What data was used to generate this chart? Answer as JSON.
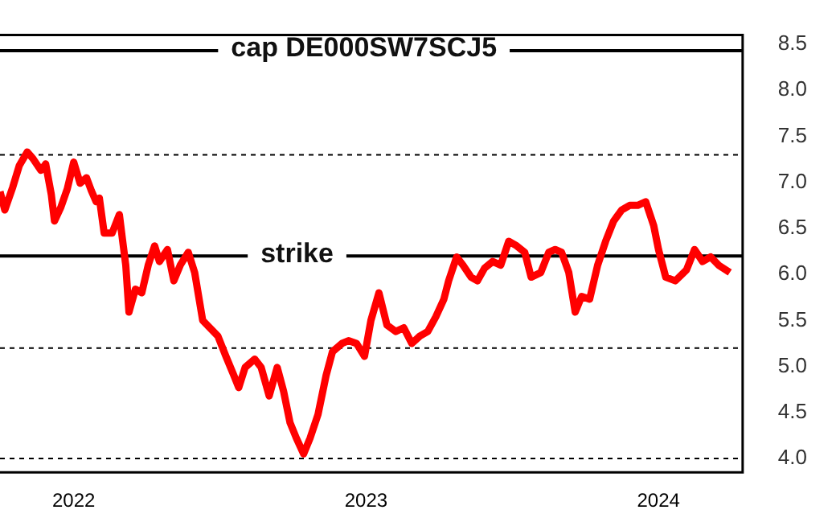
{
  "chart_data": {
    "type": "line",
    "x": [
      "2021-10-01",
      "2021-10-07",
      "2021-10-17",
      "2021-10-25",
      "2021-11-04",
      "2021-11-11",
      "2021-11-21",
      "2021-11-27",
      "2021-12-04",
      "2021-12-08",
      "2021-12-16",
      "2021-12-24",
      "2022-01-01",
      "2022-01-09",
      "2022-01-17",
      "2022-01-23",
      "2022-01-29",
      "2022-02-02",
      "2022-02-08",
      "2022-02-18",
      "2022-02-27",
      "2022-03-03",
      "2022-03-07",
      "2022-03-11",
      "2022-03-19",
      "2022-03-27",
      "2022-04-04",
      "2022-04-12",
      "2022-04-18",
      "2022-04-28",
      "2022-05-06",
      "2022-05-14",
      "2022-05-24",
      "2022-06-01",
      "2022-06-11",
      "2022-06-20",
      "2022-06-30",
      "2022-07-10",
      "2022-07-20",
      "2022-07-26",
      "2022-08-03",
      "2022-08-15",
      "2022-08-23",
      "2022-09-02",
      "2022-09-12",
      "2022-09-20",
      "2022-09-28",
      "2022-10-06",
      "2022-10-15",
      "2022-10-23",
      "2022-11-02",
      "2022-11-12",
      "2022-11-20",
      "2022-12-02",
      "2022-12-10",
      "2022-12-20",
      "2022-12-30",
      "2023-01-07",
      "2023-01-17",
      "2023-01-27",
      "2023-02-07",
      "2023-02-17",
      "2023-02-27",
      "2023-03-09",
      "2023-03-19",
      "2023-03-29",
      "2023-04-08",
      "2023-04-14",
      "2023-04-24",
      "2023-05-02",
      "2023-05-12",
      "2023-05-20",
      "2023-05-29",
      "2023-06-08",
      "2023-06-18",
      "2023-06-28",
      "2023-07-08",
      "2023-07-18",
      "2023-07-26",
      "2023-08-07",
      "2023-08-17",
      "2023-08-25",
      "2023-09-02",
      "2023-09-11",
      "2023-09-19",
      "2023-09-27",
      "2023-10-07",
      "2023-10-17",
      "2023-10-27",
      "2023-11-06",
      "2023-11-16",
      "2023-11-26",
      "2023-12-06",
      "2023-12-16",
      "2023-12-26",
      "2024-01-01",
      "2024-01-10",
      "2024-01-22",
      "2024-02-05",
      "2024-02-15",
      "2024-02-25",
      "2024-03-06",
      "2024-03-16",
      "2024-03-30"
    ],
    "series": [
      {
        "color": "#ff0000",
        "values": [
          6.9,
          6.7,
          6.95,
          7.18,
          7.33,
          7.26,
          7.13,
          7.2,
          6.87,
          6.58,
          6.73,
          6.93,
          7.22,
          6.99,
          7.05,
          6.91,
          6.79,
          6.83,
          6.45,
          6.45,
          6.65,
          6.37,
          6.1,
          5.59,
          5.84,
          5.8,
          6.1,
          6.31,
          6.14,
          6.27,
          5.93,
          6.1,
          6.24,
          6.02,
          5.5,
          5.42,
          5.33,
          5.11,
          4.9,
          4.77,
          4.99,
          5.08,
          4.99,
          4.68,
          4.99,
          4.73,
          4.39,
          4.22,
          4.05,
          4.22,
          4.48,
          4.9,
          5.16,
          5.25,
          5.28,
          5.25,
          5.11,
          5.5,
          5.8,
          5.45,
          5.38,
          5.42,
          5.25,
          5.33,
          5.38,
          5.54,
          5.73,
          5.93,
          6.19,
          6.1,
          5.97,
          5.93,
          6.07,
          6.14,
          6.1,
          6.36,
          6.31,
          6.24,
          5.97,
          6.02,
          6.24,
          6.27,
          6.24,
          6.02,
          5.59,
          5.76,
          5.73,
          6.1,
          6.36,
          6.58,
          6.7,
          6.75,
          6.75,
          6.79,
          6.53,
          6.27,
          5.97,
          5.93,
          6.05,
          6.27,
          6.14,
          6.19,
          6.1,
          6.02
        ]
      }
    ],
    "xlim": [
      "2021-10-01",
      "2024-04-15"
    ],
    "xticks": [
      "2022",
      "2023",
      "2024"
    ],
    "ylim": [
      3.85,
      8.6
    ],
    "yticks": [
      {
        "value": 4,
        "label": "4.0"
      },
      {
        "value": 4.5,
        "label": "4.5"
      },
      {
        "value": 5,
        "label": "5.0"
      },
      {
        "value": 5.5,
        "label": "5.5"
      },
      {
        "value": 6,
        "label": "6.0"
      },
      {
        "value": 6.5,
        "label": "6.5"
      },
      {
        "value": 7,
        "label": "7.0"
      },
      {
        "value": 7.5,
        "label": "7.5"
      },
      {
        "value": 8,
        "label": "8.0"
      },
      {
        "value": 8.5,
        "label": "8.5"
      }
    ],
    "ref_lines": [
      {
        "axis": "y",
        "value": 8.43,
        "label": "cap DE000SW7SCJ5",
        "color": "#000000",
        "line_style": "solid"
      },
      {
        "axis": "y",
        "value": 7.3,
        "color": "#000000",
        "line_style": "dashed"
      },
      {
        "axis": "y",
        "value": 6.2,
        "label": "strike",
        "color": "#000000",
        "line_style": "solid"
      },
      {
        "axis": "y",
        "value": 5.2,
        "color": "#000000",
        "line_style": "dashed"
      },
      {
        "axis": "y",
        "value": 4.0,
        "color": "#000000",
        "line_style": "dashed"
      }
    ],
    "grid": false,
    "legend": false,
    "marker": "none",
    "line_style": "solid"
  }
}
